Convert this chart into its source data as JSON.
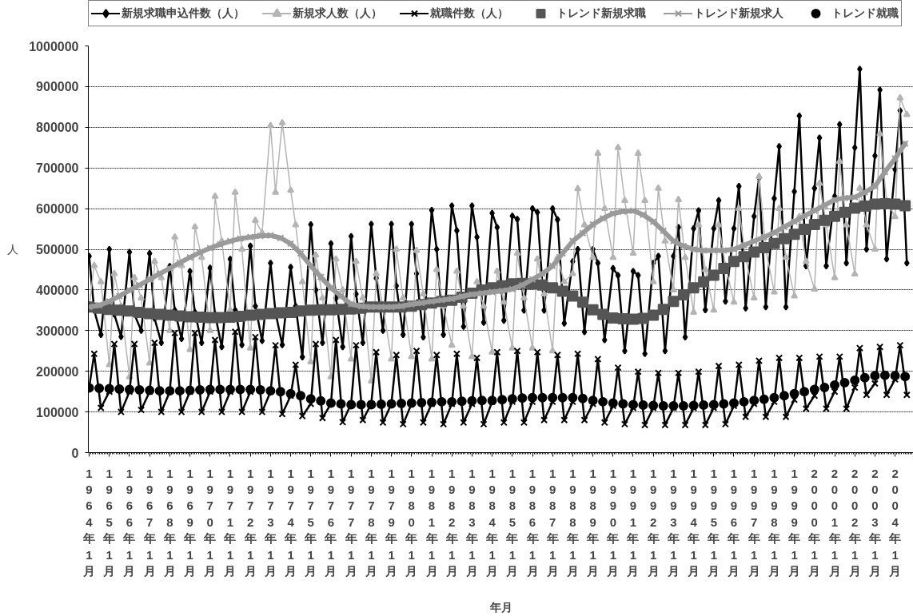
{
  "chart_data": {
    "type": "line",
    "xlabel": "年月",
    "ylabel": "人",
    "grid": "y",
    "legend": "top",
    "xlim": [
      "1963-12-17",
      "2004-11-28"
    ],
    "ylim": [
      0,
      1000000
    ],
    "yticks": [
      0,
      100000,
      200000,
      300000,
      400000,
      500000,
      600000,
      700000,
      800000,
      900000,
      1000000
    ],
    "xticks": [
      {
        "value": "1964-01",
        "label": "1964年 1月"
      },
      {
        "value": "1965-01",
        "label": "1965年 1月"
      },
      {
        "value": "1966-01",
        "label": "1966年 1月"
      },
      {
        "value": "1967-01",
        "label": "1967年 1月"
      },
      {
        "value": "1968-01",
        "label": "1968年 1月"
      },
      {
        "value": "1969-01",
        "label": "1969年 1月"
      },
      {
        "value": "1970-01",
        "label": "1970年 1月"
      },
      {
        "value": "1971-01",
        "label": "1971年 1月"
      },
      {
        "value": "1972-01",
        "label": "1972年 1月"
      },
      {
        "value": "1973-01",
        "label": "1973年 1月"
      },
      {
        "value": "1974-01",
        "label": "1974年 1月"
      },
      {
        "value": "1975-01",
        "label": "1975年 1月"
      },
      {
        "value": "1976-01",
        "label": "1976年 1月"
      },
      {
        "value": "1977-01",
        "label": "1977年 1月"
      },
      {
        "value": "1978-01",
        "label": "1978年 1月"
      },
      {
        "value": "1979-01",
        "label": "1979年 1月"
      },
      {
        "value": "1980-01",
        "label": "1980年 1月"
      },
      {
        "value": "1981-01",
        "label": "1981年 1月"
      },
      {
        "value": "1982-01",
        "label": "1982年 1月"
      },
      {
        "value": "1983-01",
        "label": "1983年 1月"
      },
      {
        "value": "1984-01",
        "label": "1984年 1月"
      },
      {
        "value": "1985-01",
        "label": "1985年 1月"
      },
      {
        "value": "1986-01",
        "label": "1986年 1月"
      },
      {
        "value": "1987-01",
        "label": "1987年 1月"
      },
      {
        "value": "1988-01",
        "label": "1988年 1月"
      },
      {
        "value": "1989-01",
        "label": "1989年 1月"
      },
      {
        "value": "1990-01",
        "label": "1990年 1月"
      },
      {
        "value": "1991-01",
        "label": "1991年 1月"
      },
      {
        "value": "1992-01",
        "label": "1992年 1月"
      },
      {
        "value": "1993-01",
        "label": "1993年 1月"
      },
      {
        "value": "1994-01",
        "label": "1994年 1月"
      },
      {
        "value": "1995-01",
        "label": "1995年 1月"
      },
      {
        "value": "1996-01",
        "label": "1996年 1月"
      },
      {
        "value": "1997-01",
        "label": "1997年 1月"
      },
      {
        "value": "1998-01",
        "label": "1998年 1月"
      },
      {
        "value": "1999-01",
        "label": "1999年 1月"
      },
      {
        "value": "2000-01",
        "label": "2000年 1月"
      },
      {
        "value": "2001-01",
        "label": "2001年 1月"
      },
      {
        "value": "2002-01",
        "label": "2002年 1月"
      },
      {
        "value": "2003-01",
        "label": "2003年 1月"
      },
      {
        "value": "2004-01",
        "label": "2004年 1月"
      }
    ],
    "x": [
      "1964-01",
      "1964-04",
      "1964-08",
      "1965-01",
      "1965-04",
      "1965-08",
      "1966-01",
      "1966-04",
      "1966-08",
      "1967-01",
      "1967-04",
      "1967-08",
      "1968-01",
      "1968-04",
      "1968-08",
      "1969-01",
      "1969-04",
      "1969-08",
      "1970-01",
      "1970-04",
      "1970-08",
      "1971-01",
      "1971-04",
      "1971-08",
      "1972-01",
      "1972-04",
      "1972-08",
      "1973-01",
      "1973-04",
      "1973-08",
      "1974-01",
      "1974-04",
      "1974-08",
      "1975-01",
      "1975-04",
      "1975-08",
      "1976-01",
      "1976-04",
      "1976-08",
      "1977-01",
      "1977-04",
      "1977-08",
      "1978-01",
      "1978-04",
      "1978-08",
      "1979-01",
      "1979-04",
      "1979-08",
      "1980-01",
      "1980-04",
      "1980-08",
      "1981-01",
      "1981-04",
      "1981-08",
      "1982-01",
      "1982-04",
      "1982-08",
      "1983-01",
      "1983-04",
      "1983-08",
      "1984-01",
      "1984-04",
      "1984-08",
      "1985-01",
      "1985-04",
      "1985-08",
      "1986-01",
      "1986-04",
      "1986-08",
      "1987-01",
      "1987-04",
      "1987-08",
      "1988-01",
      "1988-04",
      "1988-08",
      "1989-01",
      "1989-04",
      "1989-08",
      "1990-01",
      "1990-04",
      "1990-08",
      "1991-01",
      "1991-04",
      "1991-08",
      "1992-01",
      "1992-04",
      "1992-08",
      "1993-01",
      "1993-04",
      "1993-08",
      "1994-01",
      "1994-04",
      "1994-08",
      "1995-01",
      "1995-04",
      "1995-08",
      "1996-01",
      "1996-04",
      "1996-08",
      "1997-01",
      "1997-04",
      "1997-08",
      "1998-01",
      "1998-04",
      "1998-08",
      "1999-01",
      "1999-04",
      "1999-08",
      "2000-01",
      "2000-04",
      "2000-08",
      "2001-01",
      "2001-04",
      "2001-08",
      "2002-01",
      "2002-04",
      "2002-08",
      "2003-01",
      "2003-04",
      "2003-08",
      "2004-01",
      "2004-04",
      "2004-08"
    ],
    "series": [
      {
        "name": "新規求職申込件数（人）",
        "color": "#000000",
        "marker": "diamond",
        "values": [
          483000,
          350000,
          290000,
          500000,
          340000,
          285000,
          493000,
          340000,
          300000,
          490000,
          330000,
          270000,
          458000,
          350000,
          280000,
          446000,
          345000,
          270000,
          454000,
          340000,
          260000,
          476000,
          350000,
          265000,
          508000,
          360000,
          275000,
          466000,
          345000,
          265000,
          456000,
          360000,
          235000,
          561000,
          400000,
          270000,
          514000,
          380000,
          260000,
          532000,
          390000,
          270000,
          562000,
          429000,
          300000,
          562000,
          410000,
          290000,
          562000,
          440000,
          284000,
          596000,
          500000,
          290000,
          607000,
          546000,
          310000,
          607000,
          530000,
          320000,
          589000,
          554000,
          325000,
          582000,
          574000,
          350000,
          600000,
          591000,
          350000,
          600000,
          573000,
          318000,
          470000,
          500000,
          297000,
          500000,
          466000,
          277000,
          453000,
          436000,
          250000,
          446000,
          436000,
          243000,
          466000,
          483000,
          250000,
          483000,
          554000,
          284000,
          551000,
          595000,
          351000,
          551000,
          620000,
          372000,
          551000,
          655000,
          355000,
          581000,
          676000,
          358000,
          625000,
          753000,
          358000,
          642000,
          828000,
          459000,
          650000,
          774000,
          459000,
          630000,
          807000,
          466000,
          750000,
          943000,
          500000,
          730000,
          892000,
          476000,
          696000,
          841000,
          466000
        ]
      },
      {
        "name": "新規求人数（人）",
        "color": "#b4b4b4",
        "marker": "triangle",
        "values": [
          360000,
          460000,
          420000,
          216000,
          440000,
          360000,
          186000,
          430000,
          380000,
          220000,
          470000,
          430000,
          300000,
          530000,
          460000,
          253000,
          555000,
          480000,
          300000,
          630000,
          520000,
          350000,
          640000,
          500000,
          257000,
          571000,
          540000,
          804000,
          640000,
          811000,
          645000,
          560000,
          420000,
          223000,
          486000,
          380000,
          186000,
          476000,
          400000,
          230000,
          470000,
          380000,
          176000,
          440000,
          360000,
          230000,
          500000,
          380000,
          236000,
          497000,
          390000,
          230000,
          450000,
          360000,
          264000,
          446000,
          360000,
          236000,
          420000,
          360000,
          247000,
          446000,
          370000,
          257000,
          490000,
          380000,
          257000,
          476000,
          390000,
          250000,
          480000,
          420000,
          440000,
          649000,
          560000,
          480000,
          736000,
          600000,
          480000,
          750000,
          620000,
          490000,
          736000,
          620000,
          420000,
          650000,
          520000,
          400000,
          622000,
          480000,
          345000,
          560000,
          450000,
          350000,
          560000,
          460000,
          370000,
          600000,
          480000,
          380000,
          679000,
          500000,
          395000,
          600000,
          480000,
          385000,
          580000,
          470000,
          402000,
          662000,
          560000,
          430000,
          716000,
          560000,
          439000,
          650000,
          560000,
          500000,
          784000,
          620000,
          580000,
          872000,
          831000
        ]
      },
      {
        "name": "就職件数（人）",
        "color": "#000000",
        "marker": "cross",
        "values": [
          160000,
          243000,
          110000,
          150000,
          267000,
          100000,
          150000,
          267000,
          105000,
          150000,
          270000,
          100000,
          150000,
          294000,
          100000,
          150000,
          294000,
          100000,
          150000,
          277000,
          100000,
          150000,
          297000,
          100000,
          150000,
          284000,
          100000,
          150000,
          264000,
          95000,
          140000,
          216000,
          90000,
          120000,
          267000,
          85000,
          120000,
          277000,
          75000,
          120000,
          264000,
          80000,
          120000,
          247000,
          74000,
          120000,
          240000,
          70000,
          120000,
          250000,
          74000,
          120000,
          240000,
          70000,
          120000,
          243000,
          74000,
          120000,
          233000,
          70000,
          125000,
          247000,
          74000,
          125000,
          250000,
          74000,
          125000,
          247000,
          80000,
          125000,
          240000,
          80000,
          125000,
          243000,
          80000,
          120000,
          230000,
          74000,
          115000,
          209000,
          70000,
          110000,
          199000,
          68000,
          110000,
          196000,
          68000,
          110000,
          196000,
          68000,
          110000,
          199000,
          68000,
          110000,
          213000,
          70000,
          115000,
          216000,
          88000,
          120000,
          226000,
          88000,
          125000,
          233000,
          88000,
          130000,
          233000,
          108000,
          140000,
          236000,
          108000,
          150000,
          236000,
          108000,
          160000,
          257000,
          142000,
          170000,
          260000,
          142000,
          180000,
          264000,
          142000
        ]
      },
      {
        "name": "トレンド新規求職",
        "type": "scatter",
        "color": "#555555",
        "marker": "square",
        "x": [
          "1964-01",
          "1964-07",
          "1965-01",
          "1965-07",
          "1966-01",
          "1966-07",
          "1967-01",
          "1967-07",
          "1968-01",
          "1968-07",
          "1969-01",
          "1969-07",
          "1970-01",
          "1970-07",
          "1971-01",
          "1971-07",
          "1972-01",
          "1972-07",
          "1973-01",
          "1973-07",
          "1974-01",
          "1974-07",
          "1975-01",
          "1975-07",
          "1976-01",
          "1976-07",
          "1977-01",
          "1977-07",
          "1978-01",
          "1978-07",
          "1979-01",
          "1979-07",
          "1980-01",
          "1980-07",
          "1981-01",
          "1981-07",
          "1982-01",
          "1982-07",
          "1983-01",
          "1983-07",
          "1984-01",
          "1984-07",
          "1985-01",
          "1985-07",
          "1986-01",
          "1986-07",
          "1987-01",
          "1987-07",
          "1988-01",
          "1988-07",
          "1989-01",
          "1989-07",
          "1990-01",
          "1990-07",
          "1991-01",
          "1991-07",
          "1992-01",
          "1992-07",
          "1993-01",
          "1993-07",
          "1994-01",
          "1994-07",
          "1995-01",
          "1995-07",
          "1996-01",
          "1996-07",
          "1997-01",
          "1997-07",
          "1998-01",
          "1998-07",
          "1999-01",
          "1999-07",
          "2000-01",
          "2000-07",
          "2001-01",
          "2001-07",
          "2002-01",
          "2002-07",
          "2003-01",
          "2003-07",
          "2004-01",
          "2004-07"
        ],
        "values": [
          358000,
          355000,
          352000,
          350000,
          348000,
          345000,
          342000,
          340000,
          338000,
          336000,
          334000,
          333000,
          332000,
          332000,
          333000,
          335000,
          338000,
          340000,
          342000,
          344000,
          345000,
          348000,
          350000,
          351000,
          351000,
          352000,
          353000,
          355000,
          358000,
          358000,
          358000,
          358000,
          360000,
          364000,
          368000,
          372000,
          375000,
          382000,
          392000,
          400000,
          405000,
          410000,
          415000,
          416000,
          415000,
          412000,
          405000,
          397000,
          385000,
          370000,
          351000,
          340000,
          331000,
          329000,
          328000,
          330000,
          338000,
          352000,
          372000,
          388000,
          405000,
          420000,
          436000,
          453000,
          470000,
          482000,
          493000,
          504000,
          514000,
          526000,
          537000,
          549000,
          561000,
          571000,
          581000,
          591000,
          601000,
          606000,
          611000,
          612000,
          611000,
          607000
        ]
      },
      {
        "name": "トレンド新規求人",
        "color": "#9a9a9a",
        "marker": "cross",
        "x": [
          "1964-01",
          "1964-07",
          "1965-01",
          "1965-07",
          "1966-01",
          "1966-07",
          "1967-01",
          "1967-07",
          "1968-01",
          "1968-07",
          "1969-01",
          "1969-07",
          "1970-01",
          "1970-07",
          "1971-01",
          "1971-07",
          "1972-01",
          "1972-07",
          "1973-01",
          "1973-07",
          "1974-01",
          "1974-07",
          "1975-01",
          "1975-07",
          "1976-01",
          "1976-07",
          "1977-01",
          "1977-07",
          "1978-01",
          "1978-07",
          "1979-01",
          "1979-07",
          "1980-01",
          "1980-07",
          "1981-01",
          "1981-07",
          "1982-01",
          "1982-07",
          "1983-01",
          "1983-07",
          "1984-01",
          "1984-07",
          "1985-01",
          "1985-07",
          "1986-01",
          "1986-07",
          "1987-01",
          "1987-07",
          "1988-01",
          "1988-07",
          "1989-01",
          "1989-07",
          "1990-01",
          "1990-07",
          "1991-01",
          "1991-07",
          "1992-01",
          "1992-07",
          "1993-01",
          "1993-07",
          "1994-01",
          "1994-07",
          "1995-01",
          "1995-07",
          "1996-01",
          "1996-07",
          "1997-01",
          "1997-07",
          "1998-01",
          "1998-07",
          "1999-01",
          "1999-07",
          "2000-01",
          "2000-07",
          "2001-01",
          "2001-07",
          "2002-01",
          "2002-07",
          "2003-01",
          "2003-07",
          "2004-01",
          "2004-07"
        ],
        "values": [
          358000,
          362000,
          372000,
          385000,
          399000,
          412000,
          426000,
          440000,
          453000,
          467000,
          480000,
          492000,
          503000,
          512000,
          520000,
          526000,
          530000,
          533000,
          534000,
          528000,
          514000,
          490000,
          459000,
          432000,
          405000,
          385000,
          365000,
          360000,
          358000,
          358000,
          358000,
          360000,
          365000,
          368000,
          372000,
          375000,
          378000,
          384000,
          389000,
          392000,
          395000,
          398000,
          402000,
          412000,
          426000,
          440000,
          459000,
          490000,
          520000,
          540000,
          561000,
          576000,
          588000,
          593000,
          595000,
          585000,
          568000,
          545000,
          520000,
          508000,
          500000,
          497000,
          497000,
          497000,
          500000,
          510000,
          520000,
          530000,
          541000,
          555000,
          568000,
          582000,
          595000,
          608000,
          622000,
          626000,
          628000,
          640000,
          655000,
          690000,
          723000,
          760000
        ]
      },
      {
        "name": "トレンド就職",
        "type": "scatter",
        "color": "#000000",
        "marker": "circle",
        "x": [
          "1964-01",
          "1964-07",
          "1965-01",
          "1965-07",
          "1966-01",
          "1966-07",
          "1967-01",
          "1967-07",
          "1968-01",
          "1968-07",
          "1969-01",
          "1969-07",
          "1970-01",
          "1970-07",
          "1971-01",
          "1971-07",
          "1972-01",
          "1972-07",
          "1973-01",
          "1973-07",
          "1974-01",
          "1974-07",
          "1975-01",
          "1975-07",
          "1976-01",
          "1976-07",
          "1977-01",
          "1977-07",
          "1978-01",
          "1978-07",
          "1979-01",
          "1979-07",
          "1980-01",
          "1980-07",
          "1981-01",
          "1981-07",
          "1982-01",
          "1982-07",
          "1983-01",
          "1983-07",
          "1984-01",
          "1984-07",
          "1985-01",
          "1985-07",
          "1986-01",
          "1986-07",
          "1987-01",
          "1987-07",
          "1988-01",
          "1988-07",
          "1989-01",
          "1989-07",
          "1990-01",
          "1990-07",
          "1991-01",
          "1991-07",
          "1992-01",
          "1992-07",
          "1993-01",
          "1993-07",
          "1994-01",
          "1994-07",
          "1995-01",
          "1995-07",
          "1996-01",
          "1996-07",
          "1997-01",
          "1997-07",
          "1998-01",
          "1998-07",
          "1999-01",
          "1999-07",
          "2000-01",
          "2000-07",
          "2001-01",
          "2001-07",
          "2002-01",
          "2002-07",
          "2003-01",
          "2003-07",
          "2004-01",
          "2004-07"
        ],
        "values": [
          159000,
          158000,
          157000,
          156000,
          155000,
          154000,
          153000,
          152000,
          152000,
          152000,
          153000,
          154000,
          155000,
          155000,
          155000,
          155000,
          155000,
          154000,
          152000,
          150000,
          145000,
          140000,
          132000,
          127000,
          122000,
          120000,
          118000,
          118000,
          118000,
          119000,
          120000,
          121000,
          122000,
          123000,
          124000,
          125000,
          125000,
          126000,
          127000,
          128000,
          128000,
          130000,
          132000,
          134000,
          135000,
          135000,
          135000,
          135000,
          135000,
          133000,
          128000,
          125000,
          122000,
          120000,
          118000,
          117000,
          116000,
          115000,
          115000,
          115000,
          116000,
          117000,
          118000,
          120000,
          122000,
          125000,
          128000,
          131000,
          135000,
          140000,
          145000,
          150000,
          155000,
          160000,
          166000,
          172000,
          178000,
          184000,
          189000,
          190000,
          189000,
          187000
        ]
      }
    ]
  }
}
